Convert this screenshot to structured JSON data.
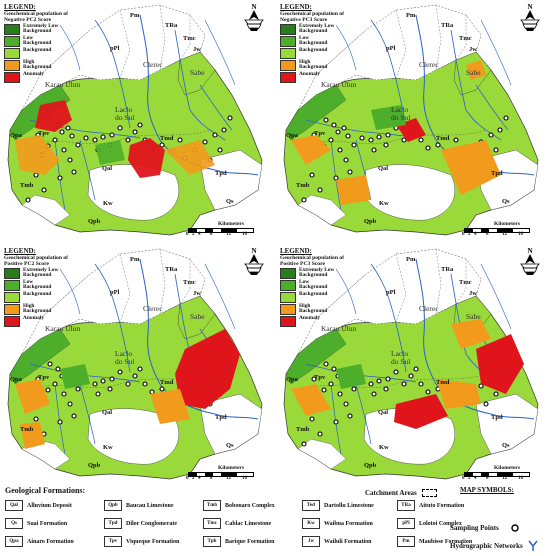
{
  "legend_title": "LEGEND:",
  "legend_classes": [
    {
      "label": "Extremely Low",
      "line2": "Background",
      "color": "#2a7d1d"
    },
    {
      "label": "Low",
      "line2": "Background",
      "color": "#4cae2a"
    },
    {
      "label": "Background",
      "line2": "",
      "color": "#9ad93a"
    },
    {
      "label": "High",
      "line2": "Background",
      "color": "#f29a1c"
    },
    {
      "label": "Anomaly",
      "line2": "",
      "color": "#e0141b"
    }
  ],
  "panels": [
    {
      "subtitle_1": "Geochemical population of",
      "subtitle_2": "Negative PC2 Score"
    },
    {
      "subtitle_1": "Geochemical population of",
      "subtitle_2": "Negative PC3 Score"
    },
    {
      "subtitle_1": "Geochemical population of",
      "subtitle_2": "Positive PC2 Score"
    },
    {
      "subtitle_1": "Geochemical population of",
      "subtitle_2": "Positive PC3 Score"
    }
  ],
  "map_labels": {
    "pm": "Pm",
    "tra": "TRa",
    "tmc": "Tmc",
    "jw": "Jw",
    "ppl": "pPl",
    "clerec": "Clerec",
    "sabe": "Sabe",
    "karau_ulun": "Karau Ulun",
    "laclo_1": "Laclo",
    "laclo_2": "do Sul",
    "qpa": "Qpa",
    "tpv": "Tpv",
    "tmb": "Tmb",
    "tpd": "Tpd",
    "qs": "Qs",
    "kw": "Kw",
    "qpb": "Qpb",
    "qal": "Qal",
    "tmd": "Tmd"
  },
  "scale": {
    "title": "Kilometers",
    "ticks": [
      "0",
      "2",
      "4",
      "8",
      "12",
      "16"
    ]
  },
  "north_label": "N",
  "geological_title": "Geological Formations:",
  "formations": [
    {
      "code": "Qal",
      "name": "Alluvium Deposit"
    },
    {
      "code": "Qs",
      "name": "Suai Formation"
    },
    {
      "code": "Qpa",
      "name": "Ainaro Formation"
    },
    {
      "code": "Qpb",
      "name": "Baucau Limestone"
    },
    {
      "code": "Tpd",
      "name": "Dilor Conglomerate"
    },
    {
      "code": "Tpv",
      "name": "Viqueque Formation"
    },
    {
      "code": "Tmb",
      "name": "Bobonaro Complex"
    },
    {
      "code": "Tmc",
      "name": "Cablac Limestone"
    },
    {
      "code": "Tpb",
      "name": "Barique Formation"
    },
    {
      "code": "Ted",
      "name": "Dartollu Limestone"
    },
    {
      "code": "Kw",
      "name": "Waibua Formation"
    },
    {
      "code": "Jw",
      "name": "Wailuli Formation"
    },
    {
      "code": "TRa",
      "name": "Aituto Formation"
    },
    {
      "code": "pPl",
      "name": "Lolotoi Complex"
    },
    {
      "code": "Pm",
      "name": "Maubisse Formation"
    }
  ],
  "catchment_label": "Catchment Areas",
  "map_symbols_title": "MAP SYMBOLS:",
  "sampling_points_label": "Sampling Points",
  "hydro_label": "Hydrographic Networks",
  "colors": {
    "river": "#2a62c9",
    "outline": "#333333"
  }
}
